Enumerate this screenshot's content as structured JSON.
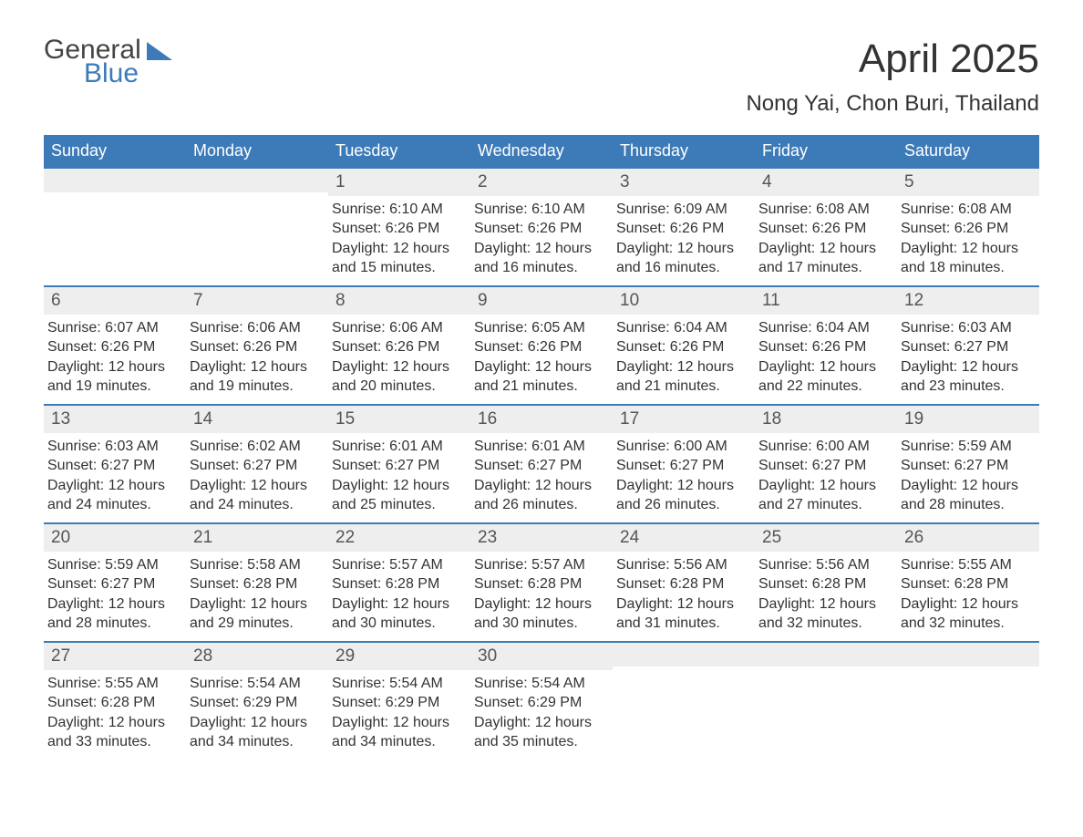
{
  "logo": {
    "line1": "General",
    "line2": "Blue"
  },
  "title": "April 2025",
  "subtitle": "Nong Yai, Chon Buri, Thailand",
  "colors": {
    "header_bg": "#3d7bb8",
    "header_text": "#ffffff",
    "daynum_bg": "#eeeeee",
    "page_bg": "#ffffff",
    "text": "#333333",
    "border": "#3d7bb8"
  },
  "day_names": [
    "Sunday",
    "Monday",
    "Tuesday",
    "Wednesday",
    "Thursday",
    "Friday",
    "Saturday"
  ],
  "weeks": [
    [
      {
        "day": "",
        "sunrise": "",
        "sunset": "",
        "daylight1": "",
        "daylight2": ""
      },
      {
        "day": "",
        "sunrise": "",
        "sunset": "",
        "daylight1": "",
        "daylight2": ""
      },
      {
        "day": "1",
        "sunrise": "Sunrise: 6:10 AM",
        "sunset": "Sunset: 6:26 PM",
        "daylight1": "Daylight: 12 hours",
        "daylight2": "and 15 minutes."
      },
      {
        "day": "2",
        "sunrise": "Sunrise: 6:10 AM",
        "sunset": "Sunset: 6:26 PM",
        "daylight1": "Daylight: 12 hours",
        "daylight2": "and 16 minutes."
      },
      {
        "day": "3",
        "sunrise": "Sunrise: 6:09 AM",
        "sunset": "Sunset: 6:26 PM",
        "daylight1": "Daylight: 12 hours",
        "daylight2": "and 16 minutes."
      },
      {
        "day": "4",
        "sunrise": "Sunrise: 6:08 AM",
        "sunset": "Sunset: 6:26 PM",
        "daylight1": "Daylight: 12 hours",
        "daylight2": "and 17 minutes."
      },
      {
        "day": "5",
        "sunrise": "Sunrise: 6:08 AM",
        "sunset": "Sunset: 6:26 PM",
        "daylight1": "Daylight: 12 hours",
        "daylight2": "and 18 minutes."
      }
    ],
    [
      {
        "day": "6",
        "sunrise": "Sunrise: 6:07 AM",
        "sunset": "Sunset: 6:26 PM",
        "daylight1": "Daylight: 12 hours",
        "daylight2": "and 19 minutes."
      },
      {
        "day": "7",
        "sunrise": "Sunrise: 6:06 AM",
        "sunset": "Sunset: 6:26 PM",
        "daylight1": "Daylight: 12 hours",
        "daylight2": "and 19 minutes."
      },
      {
        "day": "8",
        "sunrise": "Sunrise: 6:06 AM",
        "sunset": "Sunset: 6:26 PM",
        "daylight1": "Daylight: 12 hours",
        "daylight2": "and 20 minutes."
      },
      {
        "day": "9",
        "sunrise": "Sunrise: 6:05 AM",
        "sunset": "Sunset: 6:26 PM",
        "daylight1": "Daylight: 12 hours",
        "daylight2": "and 21 minutes."
      },
      {
        "day": "10",
        "sunrise": "Sunrise: 6:04 AM",
        "sunset": "Sunset: 6:26 PM",
        "daylight1": "Daylight: 12 hours",
        "daylight2": "and 21 minutes."
      },
      {
        "day": "11",
        "sunrise": "Sunrise: 6:04 AM",
        "sunset": "Sunset: 6:26 PM",
        "daylight1": "Daylight: 12 hours",
        "daylight2": "and 22 minutes."
      },
      {
        "day": "12",
        "sunrise": "Sunrise: 6:03 AM",
        "sunset": "Sunset: 6:27 PM",
        "daylight1": "Daylight: 12 hours",
        "daylight2": "and 23 minutes."
      }
    ],
    [
      {
        "day": "13",
        "sunrise": "Sunrise: 6:03 AM",
        "sunset": "Sunset: 6:27 PM",
        "daylight1": "Daylight: 12 hours",
        "daylight2": "and 24 minutes."
      },
      {
        "day": "14",
        "sunrise": "Sunrise: 6:02 AM",
        "sunset": "Sunset: 6:27 PM",
        "daylight1": "Daylight: 12 hours",
        "daylight2": "and 24 minutes."
      },
      {
        "day": "15",
        "sunrise": "Sunrise: 6:01 AM",
        "sunset": "Sunset: 6:27 PM",
        "daylight1": "Daylight: 12 hours",
        "daylight2": "and 25 minutes."
      },
      {
        "day": "16",
        "sunrise": "Sunrise: 6:01 AM",
        "sunset": "Sunset: 6:27 PM",
        "daylight1": "Daylight: 12 hours",
        "daylight2": "and 26 minutes."
      },
      {
        "day": "17",
        "sunrise": "Sunrise: 6:00 AM",
        "sunset": "Sunset: 6:27 PM",
        "daylight1": "Daylight: 12 hours",
        "daylight2": "and 26 minutes."
      },
      {
        "day": "18",
        "sunrise": "Sunrise: 6:00 AM",
        "sunset": "Sunset: 6:27 PM",
        "daylight1": "Daylight: 12 hours",
        "daylight2": "and 27 minutes."
      },
      {
        "day": "19",
        "sunrise": "Sunrise: 5:59 AM",
        "sunset": "Sunset: 6:27 PM",
        "daylight1": "Daylight: 12 hours",
        "daylight2": "and 28 minutes."
      }
    ],
    [
      {
        "day": "20",
        "sunrise": "Sunrise: 5:59 AM",
        "sunset": "Sunset: 6:27 PM",
        "daylight1": "Daylight: 12 hours",
        "daylight2": "and 28 minutes."
      },
      {
        "day": "21",
        "sunrise": "Sunrise: 5:58 AM",
        "sunset": "Sunset: 6:28 PM",
        "daylight1": "Daylight: 12 hours",
        "daylight2": "and 29 minutes."
      },
      {
        "day": "22",
        "sunrise": "Sunrise: 5:57 AM",
        "sunset": "Sunset: 6:28 PM",
        "daylight1": "Daylight: 12 hours",
        "daylight2": "and 30 minutes."
      },
      {
        "day": "23",
        "sunrise": "Sunrise: 5:57 AM",
        "sunset": "Sunset: 6:28 PM",
        "daylight1": "Daylight: 12 hours",
        "daylight2": "and 30 minutes."
      },
      {
        "day": "24",
        "sunrise": "Sunrise: 5:56 AM",
        "sunset": "Sunset: 6:28 PM",
        "daylight1": "Daylight: 12 hours",
        "daylight2": "and 31 minutes."
      },
      {
        "day": "25",
        "sunrise": "Sunrise: 5:56 AM",
        "sunset": "Sunset: 6:28 PM",
        "daylight1": "Daylight: 12 hours",
        "daylight2": "and 32 minutes."
      },
      {
        "day": "26",
        "sunrise": "Sunrise: 5:55 AM",
        "sunset": "Sunset: 6:28 PM",
        "daylight1": "Daylight: 12 hours",
        "daylight2": "and 32 minutes."
      }
    ],
    [
      {
        "day": "27",
        "sunrise": "Sunrise: 5:55 AM",
        "sunset": "Sunset: 6:28 PM",
        "daylight1": "Daylight: 12 hours",
        "daylight2": "and 33 minutes."
      },
      {
        "day": "28",
        "sunrise": "Sunrise: 5:54 AM",
        "sunset": "Sunset: 6:29 PM",
        "daylight1": "Daylight: 12 hours",
        "daylight2": "and 34 minutes."
      },
      {
        "day": "29",
        "sunrise": "Sunrise: 5:54 AM",
        "sunset": "Sunset: 6:29 PM",
        "daylight1": "Daylight: 12 hours",
        "daylight2": "and 34 minutes."
      },
      {
        "day": "30",
        "sunrise": "Sunrise: 5:54 AM",
        "sunset": "Sunset: 6:29 PM",
        "daylight1": "Daylight: 12 hours",
        "daylight2": "and 35 minutes."
      },
      {
        "day": "",
        "sunrise": "",
        "sunset": "",
        "daylight1": "",
        "daylight2": ""
      },
      {
        "day": "",
        "sunrise": "",
        "sunset": "",
        "daylight1": "",
        "daylight2": ""
      },
      {
        "day": "",
        "sunrise": "",
        "sunset": "",
        "daylight1": "",
        "daylight2": ""
      }
    ]
  ]
}
